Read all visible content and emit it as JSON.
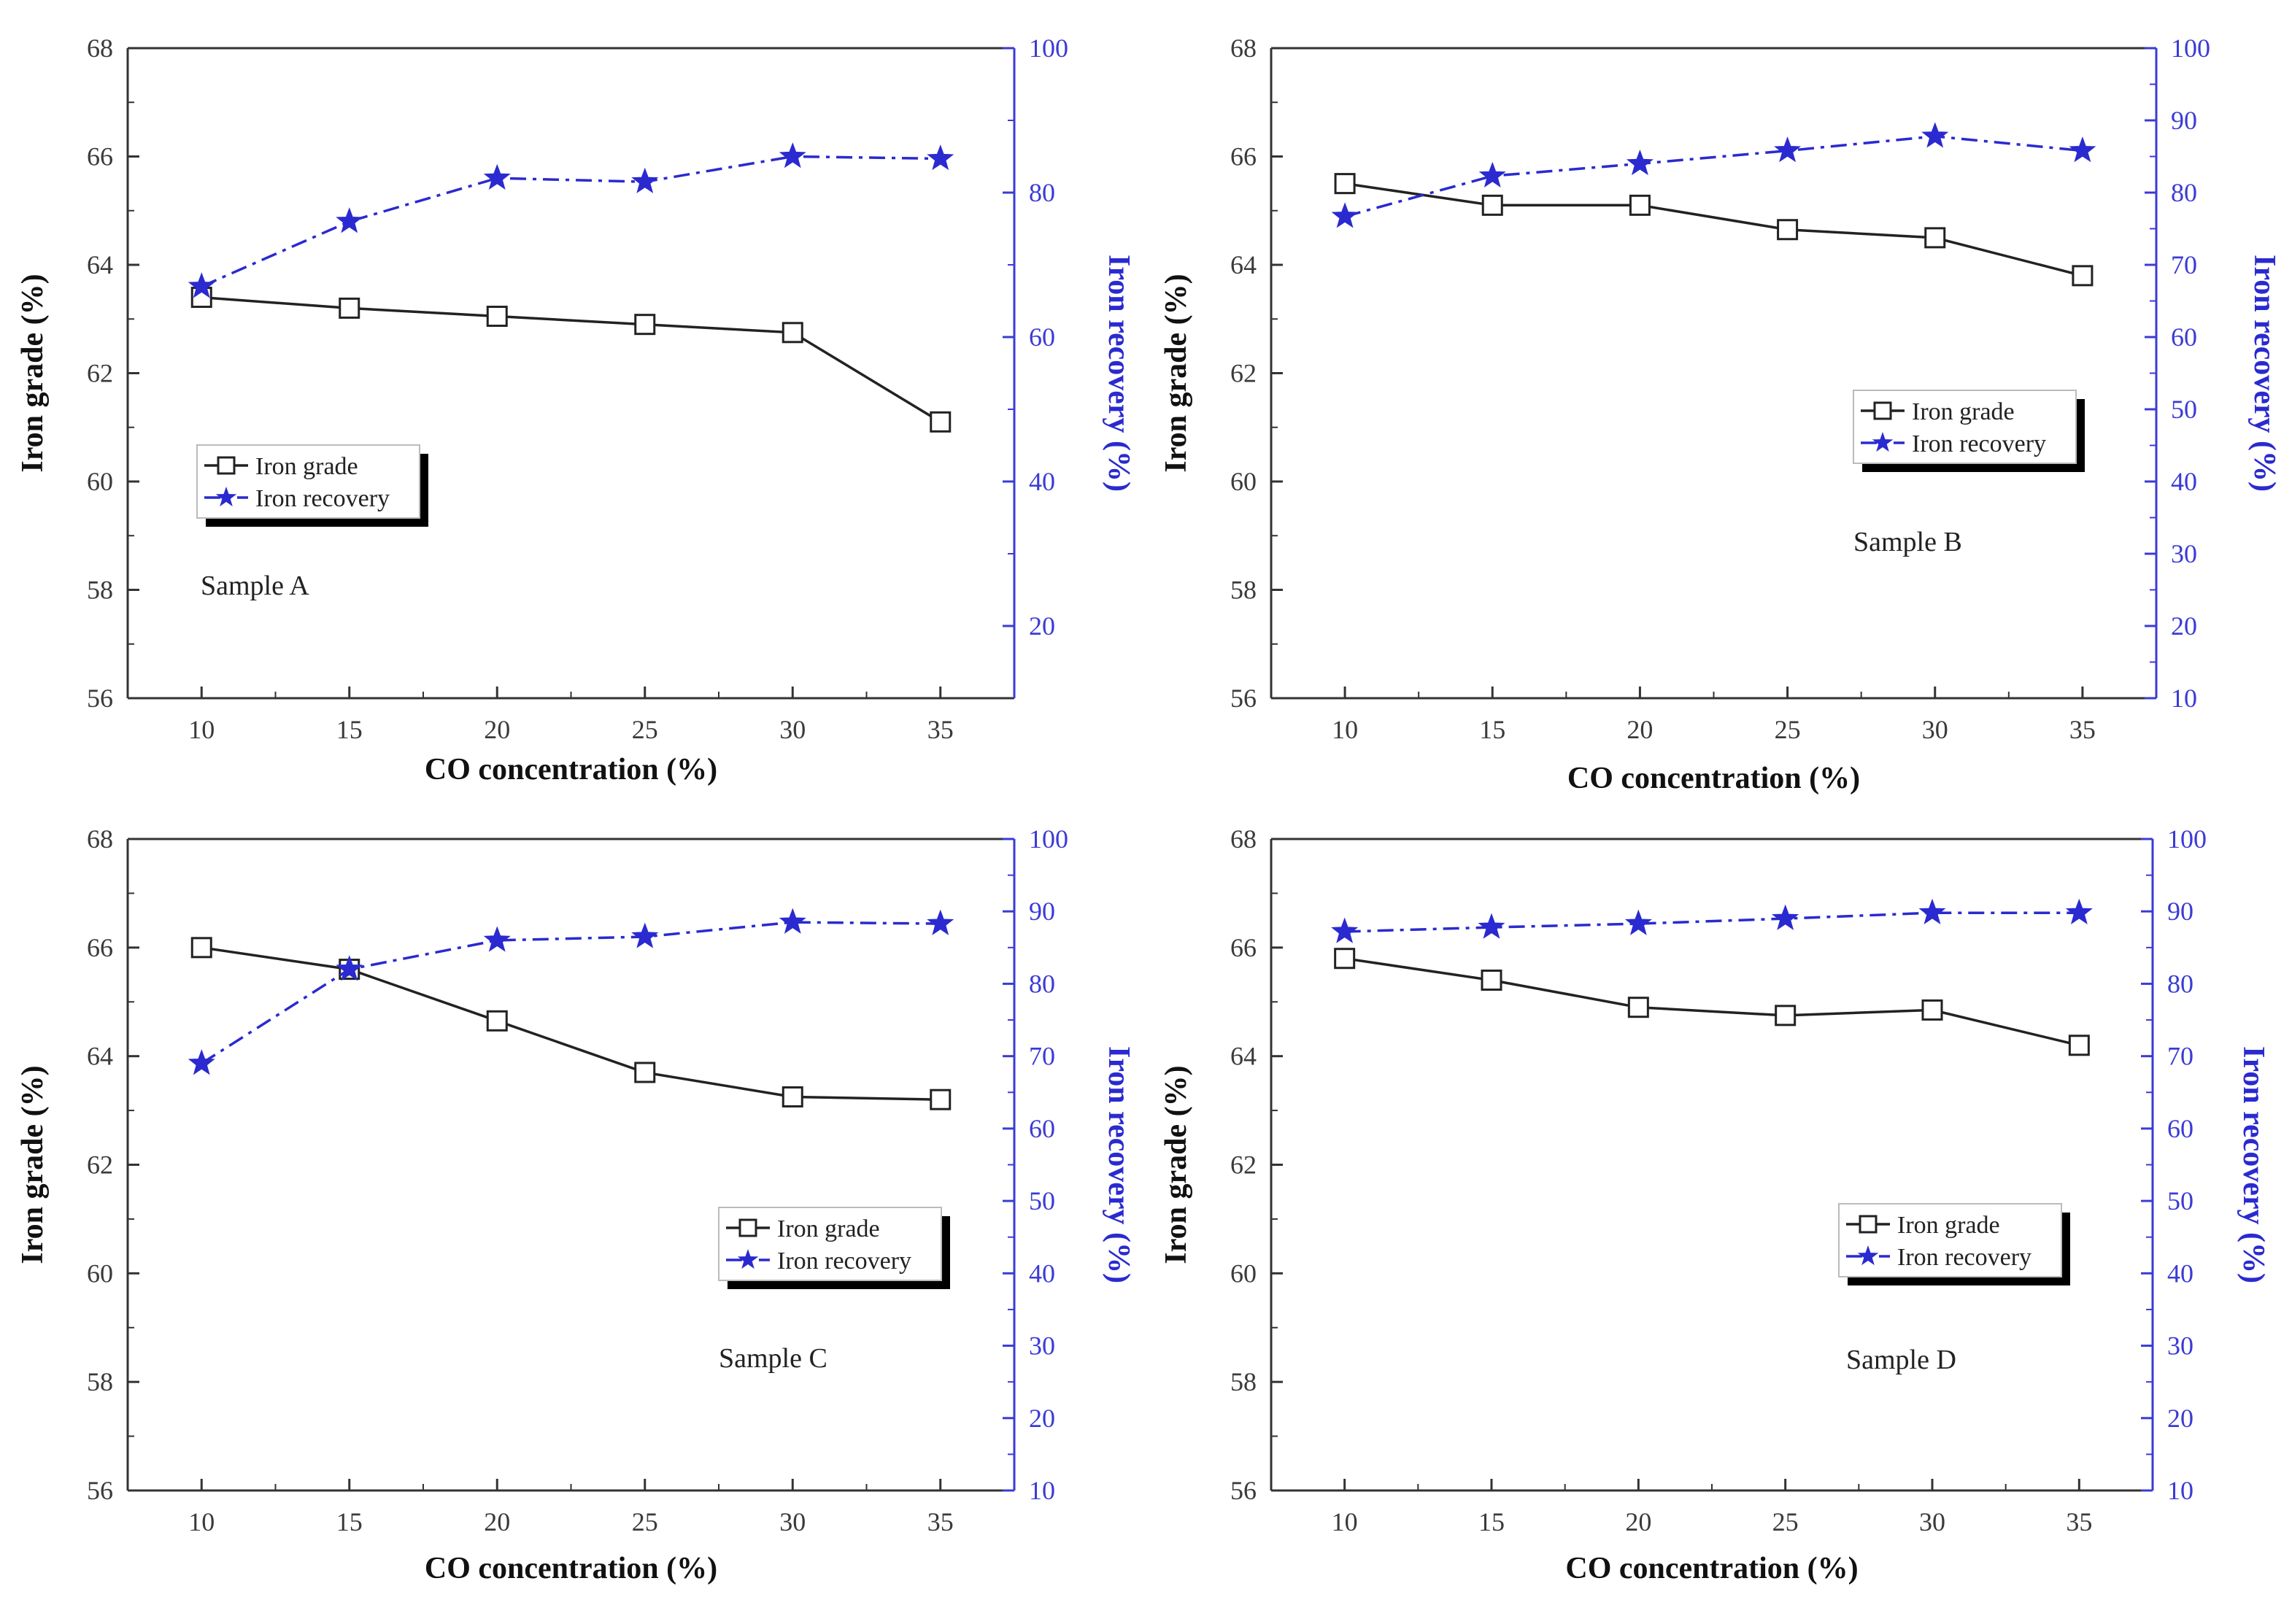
{
  "chart_data": [
    {
      "type": "line",
      "panel": "A",
      "sample_label": "Sample A",
      "x": [
        10,
        15,
        20,
        25,
        30,
        35
      ],
      "xticks": [
        10,
        15,
        20,
        25,
        30,
        35
      ],
      "xlabel": "CO concentration (%)",
      "ylabel": "Iron grade (%)",
      "ylim": [
        56,
        68
      ],
      "yticks": [
        56,
        58,
        60,
        62,
        64,
        66,
        68
      ],
      "y2label": "Iron recovery (%)",
      "y2lim": [
        10,
        100
      ],
      "y2ticks": [
        20,
        40,
        60,
        80,
        100
      ],
      "legend_position": "middle-left",
      "series": [
        {
          "name": "Iron grade",
          "axis": "left",
          "marker": "square",
          "values": [
            63.4,
            63.2,
            63.05,
            62.9,
            62.75,
            61.1
          ]
        },
        {
          "name": "Iron recovery",
          "axis": "right",
          "marker": "star",
          "values": [
            67,
            76,
            82,
            81.5,
            85,
            84.7
          ]
        }
      ]
    },
    {
      "type": "line",
      "panel": "B",
      "sample_label": "Sample B",
      "x": [
        10,
        15,
        20,
        25,
        30,
        35
      ],
      "xticks": [
        10,
        15,
        20,
        25,
        30,
        35
      ],
      "xlabel": "CO concentration (%)",
      "ylabel": "Iron grade (%)",
      "ylim": [
        56,
        68
      ],
      "yticks": [
        56,
        58,
        60,
        62,
        64,
        66,
        68
      ],
      "y2label": "Iron recovery (%)",
      "y2lim": [
        10,
        100
      ],
      "y2ticks": [
        10,
        20,
        30,
        40,
        50,
        60,
        70,
        80,
        90,
        100
      ],
      "legend_position": "middle-right",
      "series": [
        {
          "name": "Iron grade",
          "axis": "left",
          "marker": "square",
          "values": [
            65.5,
            65.1,
            65.1,
            64.65,
            64.5,
            63.8
          ]
        },
        {
          "name": "Iron recovery",
          "axis": "right",
          "marker": "star",
          "values": [
            76.7,
            82.3,
            84,
            85.8,
            87.8,
            85.8
          ]
        }
      ]
    },
    {
      "type": "line",
      "panel": "C",
      "sample_label": "Sample C",
      "x": [
        10,
        15,
        20,
        25,
        30,
        35
      ],
      "xticks": [
        10,
        15,
        20,
        25,
        30,
        35
      ],
      "xlabel": "CO concentration (%)",
      "ylabel": "Iron grade (%)",
      "ylim": [
        56,
        68
      ],
      "yticks": [
        56,
        58,
        60,
        62,
        64,
        66,
        68
      ],
      "y2label": "Iron recovery (%)",
      "y2lim": [
        10,
        100
      ],
      "y2ticks": [
        10,
        20,
        30,
        40,
        50,
        60,
        70,
        80,
        90,
        100
      ],
      "legend_position": "middle-right",
      "series": [
        {
          "name": "Iron grade",
          "axis": "left",
          "marker": "square",
          "values": [
            66.0,
            65.6,
            64.65,
            63.7,
            63.25,
            63.2
          ]
        },
        {
          "name": "Iron recovery",
          "axis": "right",
          "marker": "star",
          "values": [
            69,
            82,
            86,
            86.5,
            88.5,
            88.3
          ]
        }
      ]
    },
    {
      "type": "line",
      "panel": "D",
      "sample_label": "Sample D",
      "x": [
        10,
        15,
        20,
        25,
        30,
        35
      ],
      "xticks": [
        10,
        15,
        20,
        25,
        30,
        35
      ],
      "xlabel": "CO concentration (%)",
      "ylabel": "Iron grade (%)",
      "ylim": [
        56,
        68
      ],
      "yticks": [
        56,
        58,
        60,
        62,
        64,
        66,
        68
      ],
      "y2label": "Iron recovery (%)",
      "y2lim": [
        10,
        100
      ],
      "y2ticks": [
        10,
        20,
        30,
        40,
        50,
        60,
        70,
        80,
        90,
        100
      ],
      "legend_position": "middle-right",
      "series": [
        {
          "name": "Iron grade",
          "axis": "left",
          "marker": "square",
          "values": [
            65.8,
            65.4,
            64.9,
            64.75,
            64.85,
            64.2
          ]
        },
        {
          "name": "Iron recovery",
          "axis": "right",
          "marker": "star",
          "values": [
            87.2,
            87.8,
            88.3,
            89,
            89.8,
            89.8
          ]
        }
      ]
    }
  ],
  "colors": {
    "grade": "#222222",
    "recovery": "#2a2ad0",
    "axis_left": "#333333",
    "axis_right": "#3b3bd6"
  }
}
